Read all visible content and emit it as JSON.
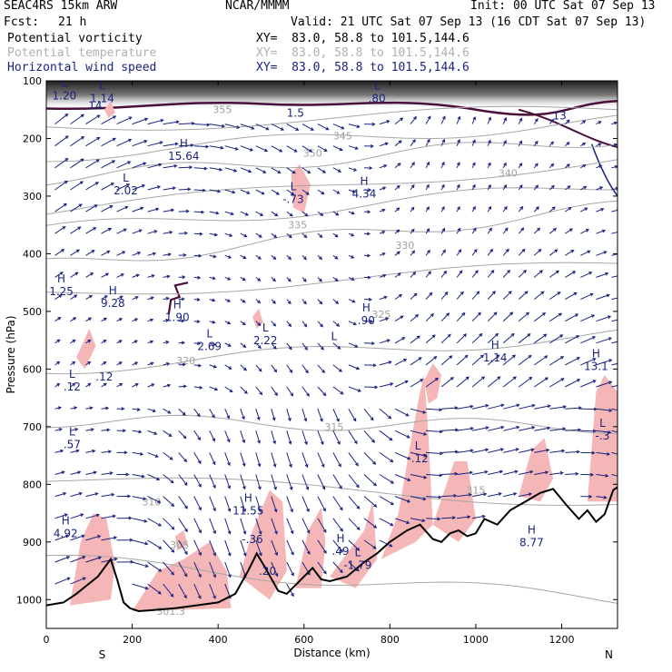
{
  "header": {
    "model": "SEAC4RS 15km ARW",
    "org": "NCAR/MMMM",
    "init": "Init: 00 UTC Sat 07 Sep 13",
    "fcst_label": "Fcst:",
    "fcst_value": "21 h",
    "valid": "Valid: 21 UTC Sat 07 Sep 13 (16 CDT Sat 07 Sep 13)",
    "fields": [
      {
        "name": "Potential vorticity",
        "xy": "XY=  83.0, 58.8 to 101.5,144.6",
        "color": "#000000"
      },
      {
        "name": "Potential temperature",
        "xy": "XY=  83.0, 58.8 to 101.5,144.6",
        "color": "#b0b0b0"
      },
      {
        "name": "Horizontal wind speed",
        "xy": "XY=  83.0, 58.8 to 101.5,144.6",
        "color": "#1a237e"
      }
    ]
  },
  "chart_data": {
    "type": "cross-section",
    "xlabel": "Distance (km)",
    "ylabel": "Pressure (hPa)",
    "xlim": [
      0,
      1330
    ],
    "ylim": [
      1050,
      100
    ],
    "x_ticks": [
      0,
      200,
      400,
      600,
      800,
      1000,
      1200
    ],
    "y_ticks": [
      100,
      200,
      300,
      400,
      500,
      600,
      700,
      800,
      900,
      1000
    ],
    "x_endpoints": {
      "left": "S",
      "right": "N"
    },
    "colors": {
      "terrain": "#000000",
      "pv_fill": "#f4b6b6",
      "pv_line": "#4a0f3a",
      "theta": "#a6a6a6",
      "wind": "#1a237e"
    },
    "terrain": {
      "x": [
        0,
        40,
        70,
        95,
        120,
        150,
        165,
        180,
        195,
        215,
        250,
        300,
        350,
        400,
        440,
        470,
        490,
        510,
        540,
        560,
        580,
        620,
        640,
        660,
        700,
        740,
        770,
        800,
        840,
        870,
        900,
        920,
        940,
        960,
        980,
        1000,
        1020,
        1050,
        1080,
        1120,
        1150,
        1180,
        1210,
        1240,
        1260,
        1280,
        1300,
        1320,
        1330
      ],
      "p": [
        1010,
        1005,
        990,
        975,
        960,
        930,
        965,
        1005,
        1015,
        1020,
        1018,
        1015,
        1010,
        1005,
        990,
        950,
        920,
        945,
        985,
        990,
        975,
        945,
        965,
        968,
        960,
        935,
        920,
        900,
        880,
        870,
        895,
        900,
        885,
        880,
        890,
        885,
        860,
        870,
        845,
        828,
        815,
        808,
        835,
        860,
        845,
        865,
        852,
        810,
        805
      ]
    },
    "pv_contour_labels": [
      {
        "x": 110,
        "p": 150,
        "v": ".14"
      },
      {
        "x": 135,
        "p": 620,
        "v": ".12"
      },
      {
        "x": 670,
        "p": 550,
        "v": "L"
      }
    ],
    "theta_isentropes": [
      {
        "v": 355,
        "p_left": 180,
        "p_right": 150
      },
      {
        "v": 350,
        "p_left": 230,
        "p_right": 170
      },
      {
        "v": 345,
        "p_left": 270,
        "p_right": 200
      },
      {
        "v": 340,
        "p_left": 330,
        "p_right": 235
      },
      {
        "v": 335,
        "p_left": 360,
        "p_right": 280
      },
      {
        "v": 330,
        "p_left": 420,
        "p_right": 320
      },
      {
        "v": 325,
        "p_left": 470,
        "p_right": 420
      },
      {
        "v": 320,
        "p_left": 600,
        "p_right": 540
      },
      {
        "v": 315,
        "p_left": 690,
        "p_right": 700
      },
      {
        "v": 310,
        "p_left": 790,
        "p_right": 830
      },
      {
        "v": 305,
        "p_left": 930,
        "p_right": 1000
      }
    ],
    "theta_labels": [
      {
        "x": 410,
        "p": 150,
        "v": "355"
      },
      {
        "x": 620,
        "p": 225,
        "v": "350"
      },
      {
        "x": 690,
        "p": 195,
        "v": "345"
      },
      {
        "x": 1075,
        "p": 260,
        "v": "340"
      },
      {
        "x": 585,
        "p": 350,
        "v": "335"
      },
      {
        "x": 835,
        "p": 385,
        "v": "330"
      },
      {
        "x": 780,
        "p": 505,
        "v": "325"
      },
      {
        "x": 325,
        "p": 585,
        "v": "320"
      },
      {
        "x": 670,
        "p": 700,
        "v": "315"
      },
      {
        "x": 1000,
        "p": 810,
        "v": "315"
      },
      {
        "x": 245,
        "p": 830,
        "v": "310"
      },
      {
        "x": 310,
        "p": 905,
        "v": "305"
      },
      {
        "x": 290,
        "p": 1020,
        "v": "301.3"
      }
    ],
    "extrema": [
      {
        "x": 42,
        "p": 110,
        "t": "L",
        "v": "1.20"
      },
      {
        "x": 130,
        "p": 115,
        "t": "L",
        "v": "1.14"
      },
      {
        "x": 320,
        "p": 215,
        "t": "H",
        "v": "15.64"
      },
      {
        "x": 740,
        "p": 280,
        "t": "H",
        "v": "4.34"
      },
      {
        "x": 185,
        "p": 275,
        "t": "L",
        "v": "2.02"
      },
      {
        "x": 575,
        "p": 290,
        "t": "L",
        "v": "-.73"
      },
      {
        "x": 35,
        "p": 450,
        "t": "H",
        "v": "1.25"
      },
      {
        "x": 155,
        "p": 470,
        "t": "H",
        "v": "9.28"
      },
      {
        "x": 305,
        "p": 495,
        "t": "H",
        "v": "1.90"
      },
      {
        "x": 380,
        "p": 545,
        "t": "L",
        "v": "2.69"
      },
      {
        "x": 510,
        "p": 535,
        "t": "L",
        "v": "2.22"
      },
      {
        "x": 745,
        "p": 500,
        "t": "H",
        "v": ".90"
      },
      {
        "x": 1045,
        "p": 565,
        "t": "H",
        "v": "1.14"
      },
      {
        "x": 1280,
        "p": 580,
        "t": "H",
        "v": "13.1"
      },
      {
        "x": 60,
        "p": 615,
        "t": "L",
        "v": ".12"
      },
      {
        "x": 60,
        "p": 715,
        "t": "L",
        "v": ".57"
      },
      {
        "x": 865,
        "p": 740,
        "t": "L",
        "v": "-.12"
      },
      {
        "x": 1130,
        "p": 885,
        "t": "H",
        "v": "8.77"
      },
      {
        "x": 1295,
        "p": 700,
        "t": "L",
        "v": "-.3"
      },
      {
        "x": 45,
        "p": 870,
        "t": "H",
        "v": "4.92"
      },
      {
        "x": 470,
        "p": 830,
        "t": "H",
        "v": "11.55"
      },
      {
        "x": 480,
        "p": 880,
        "t": "",
        "v": "-.36"
      },
      {
        "x": 515,
        "p": 935,
        "t": "",
        "v": ".20"
      },
      {
        "x": 685,
        "p": 900,
        "t": "H",
        "v": ".49"
      },
      {
        "x": 725,
        "p": 925,
        "t": "L",
        "v": "-1.79"
      },
      {
        "x": 770,
        "p": 115,
        "t": "L",
        "v": ".80"
      },
      {
        "x": 580,
        "p": 140,
        "t": "",
        "v": "1.5"
      },
      {
        "x": 1195,
        "p": 145,
        "t": "",
        "v": "13"
      }
    ]
  }
}
